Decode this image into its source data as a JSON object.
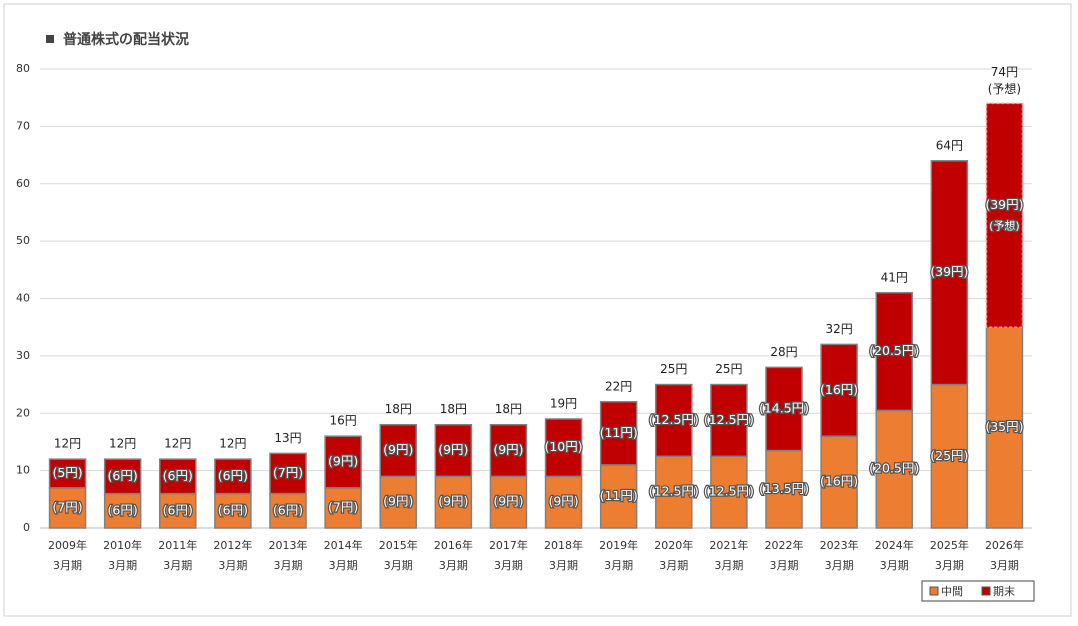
{
  "chart_data": {
    "type": "stacked_bar",
    "title": "普通株式の配当状況",
    "categories": [
      [
        "2009年",
        "3月期"
      ],
      [
        "2010年",
        "3月期"
      ],
      [
        "2011年",
        "3月期"
      ],
      [
        "2012年",
        "3月期"
      ],
      [
        "2013年",
        "3月期"
      ],
      [
        "2014年",
        "3月期"
      ],
      [
        "2015年",
        "3月期"
      ],
      [
        "2016年",
        "3月期"
      ],
      [
        "2017年",
        "3月期"
      ],
      [
        "2018年",
        "3月期"
      ],
      [
        "2019年",
        "3月期"
      ],
      [
        "2020年",
        "3月期"
      ],
      [
        "2021年",
        "3月期"
      ],
      [
        "2022年",
        "3月期"
      ],
      [
        "2023年",
        "3月期"
      ],
      [
        "2024年",
        "3月期"
      ],
      [
        "2025年",
        "3月期"
      ],
      [
        "2026年",
        "3月期"
      ]
    ],
    "series": [
      {
        "name": "中間",
        "color": "#ed7d31",
        "values": [
          7,
          6,
          6,
          6,
          6,
          7,
          9,
          9,
          9,
          9,
          11,
          12.5,
          12.5,
          13.5,
          16,
          20.5,
          25,
          35
        ],
        "value_labels": [
          "(7円)",
          "(6円)",
          "(6円)",
          "(6円)",
          "(6円)",
          "(7円)",
          "(9円)",
          "(9円)",
          "(9円)",
          "(9円)",
          "(11円)",
          "(12.5円)",
          "(12.5円)",
          "(13.5円)",
          "(16円)",
          "(20.5円)",
          "(25円)",
          "(35円)"
        ]
      },
      {
        "name": "期末",
        "color": "#c00000",
        "values": [
          5,
          6,
          6,
          6,
          7,
          9,
          9,
          9,
          9,
          10,
          11,
          12.5,
          12.5,
          14.5,
          16,
          20.5,
          39,
          39
        ],
        "value_labels": [
          "(5円)",
          "(6円)",
          "(6円)",
          "(6円)",
          "(7円)",
          "(9円)",
          "(9円)",
          "(9円)",
          "(9円)",
          "(10円)",
          "(11円)",
          "(12.5円)",
          "(12.5円)",
          "(14.5円)",
          "(16円)",
          "(20.5円)",
          "(39円)",
          "(39円)"
        ]
      }
    ],
    "totals": {
      "values": [
        12,
        12,
        12,
        12,
        13,
        16,
        18,
        18,
        18,
        19,
        22,
        25,
        25,
        28,
        32,
        41,
        64,
        74
      ],
      "value_labels": [
        "12円",
        "12円",
        "12円",
        "12円",
        "13円",
        "16円",
        "18円",
        "18円",
        "18円",
        "19円",
        "22円",
        "25円",
        "25円",
        "28円",
        "32円",
        "41円",
        "64円",
        "74円"
      ]
    },
    "forecast_label": "(予想)",
    "ylim": [
      0,
      80
    ],
    "yticks": [
      0,
      10,
      20,
      30,
      40,
      50,
      60,
      70,
      80
    ],
    "grid": true,
    "legend": "bottom-right"
  }
}
